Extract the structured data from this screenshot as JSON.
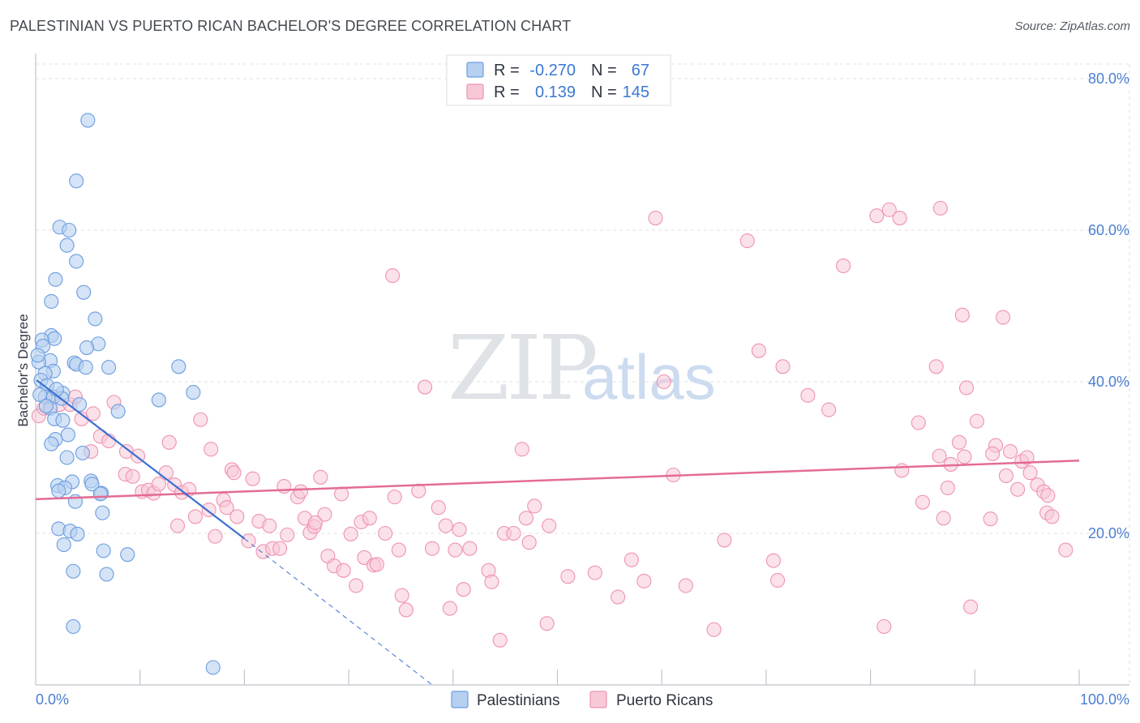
{
  "title": "PALESTINIAN VS PUERTO RICAN BACHELOR'S DEGREE CORRELATION CHART",
  "source": "Source: ZipAtlas.com",
  "watermark": {
    "zip": "ZIP",
    "atlas": "atlas"
  },
  "legend": {
    "rows": [
      {
        "r_label": "R =",
        "r_value": "-0.270",
        "n_label": "N =",
        "n_value": "67",
        "color": "#7faee8"
      },
      {
        "r_label": "R =",
        "r_value": "0.139",
        "n_label": "N =",
        "n_value": "145",
        "color": "#f2a3bd"
      }
    ]
  },
  "bottom_legend": [
    {
      "label": "Palestinians",
      "color": "#7faee8"
    },
    {
      "label": "Puerto Ricans",
      "color": "#f2a3bd"
    }
  ],
  "colors": {
    "blue_fill": "#b7d0f0",
    "blue_stroke": "#6a9de0",
    "blue_line": "#3a70d0",
    "pink_fill": "#f7c9d7",
    "pink_stroke": "#ef93b1",
    "pink_line": "#e36c94",
    "grid": "#dde1e6",
    "axis": "#bfc4ca"
  },
  "chart_data": {
    "type": "scatter",
    "title": "PALESTINIAN VS PUERTO RICAN BACHELOR'S DEGREE CORRELATION CHART",
    "xlabel": "",
    "ylabel": "Bachelor's Degree",
    "xlim": [
      0,
      100
    ],
    "ylim": [
      0,
      80
    ],
    "x_tick_labels": [
      "0.0%",
      "100.0%"
    ],
    "y_ticks": [
      20,
      40,
      60,
      80
    ],
    "y_tick_labels": [
      "20.0%",
      "40.0%",
      "60.0%",
      "80.0%"
    ],
    "grid": true,
    "series": [
      {
        "name": "Palestinians",
        "r": -0.27,
        "n": 67,
        "trend": {
          "x0": 0.1,
          "y0": 40.2,
          "x1": 20.0,
          "y1": 19.3,
          "dash_x1": 38.0,
          "dash_y1": 0.0
        },
        "points": [
          [
            5.0,
            74.5
          ],
          [
            3.9,
            66.5
          ],
          [
            2.3,
            60.4
          ],
          [
            3.2,
            60.0
          ],
          [
            3.0,
            58.0
          ],
          [
            3.9,
            55.9
          ],
          [
            1.9,
            53.5
          ],
          [
            4.6,
            51.8
          ],
          [
            1.5,
            50.6
          ],
          [
            5.7,
            48.3
          ],
          [
            1.5,
            46.1
          ],
          [
            1.8,
            45.7
          ],
          [
            0.6,
            45.5
          ],
          [
            0.7,
            44.7
          ],
          [
            6.0,
            45.0
          ],
          [
            4.9,
            44.5
          ],
          [
            1.4,
            42.8
          ],
          [
            0.3,
            42.6
          ],
          [
            3.7,
            42.5
          ],
          [
            3.9,
            42.3
          ],
          [
            7.0,
            41.9
          ],
          [
            13.7,
            42.0
          ],
          [
            4.8,
            41.9
          ],
          [
            1.7,
            41.4
          ],
          [
            0.9,
            41.1
          ],
          [
            0.5,
            40.2
          ],
          [
            1.1,
            39.5
          ],
          [
            15.1,
            38.6
          ],
          [
            2.6,
            38.5
          ],
          [
            0.9,
            38.0
          ],
          [
            1.7,
            38.0
          ],
          [
            2.5,
            37.8
          ],
          [
            11.8,
            37.6
          ],
          [
            1.4,
            36.5
          ],
          [
            7.9,
            36.1
          ],
          [
            1.8,
            35.1
          ],
          [
            2.6,
            34.9
          ],
          [
            3.1,
            33.0
          ],
          [
            1.9,
            32.4
          ],
          [
            1.5,
            31.8
          ],
          [
            4.5,
            30.6
          ],
          [
            3.0,
            30.0
          ],
          [
            5.3,
            26.9
          ],
          [
            3.5,
            26.8
          ],
          [
            5.4,
            26.5
          ],
          [
            2.1,
            26.3
          ],
          [
            2.8,
            26.0
          ],
          [
            2.2,
            25.6
          ],
          [
            6.3,
            25.3
          ],
          [
            6.2,
            25.2
          ],
          [
            3.8,
            24.2
          ],
          [
            6.4,
            22.7
          ],
          [
            2.2,
            20.6
          ],
          [
            3.3,
            20.3
          ],
          [
            4.0,
            19.9
          ],
          [
            2.7,
            18.5
          ],
          [
            6.5,
            17.7
          ],
          [
            8.8,
            17.2
          ],
          [
            3.6,
            15.0
          ],
          [
            6.8,
            14.6
          ],
          [
            3.6,
            7.7
          ],
          [
            17.0,
            2.3
          ],
          [
            0.4,
            38.3
          ],
          [
            1.0,
            36.8
          ],
          [
            2.0,
            39.0
          ],
          [
            4.2,
            37.0
          ],
          [
            0.2,
            43.5
          ]
        ]
      },
      {
        "name": "Puerto Ricans",
        "r": 0.139,
        "n": 145,
        "trend": {
          "x0": 0.0,
          "y0": 24.5,
          "x1": 100.0,
          "y1": 29.6
        },
        "points": [
          [
            0.3,
            35.5
          ],
          [
            0.8,
            36.5
          ],
          [
            1.5,
            38.0
          ],
          [
            2.3,
            37.0
          ],
          [
            3.3,
            37.0
          ],
          [
            3.8,
            38.0
          ],
          [
            4.4,
            35.1
          ],
          [
            5.5,
            35.8
          ],
          [
            6.2,
            32.8
          ],
          [
            7.0,
            32.2
          ],
          [
            5.3,
            30.8
          ],
          [
            7.5,
            37.3
          ],
          [
            8.7,
            30.8
          ],
          [
            9.8,
            30.2
          ],
          [
            8.6,
            27.8
          ],
          [
            9.3,
            27.5
          ],
          [
            10.2,
            25.5
          ],
          [
            10.8,
            25.7
          ],
          [
            11.3,
            25.3
          ],
          [
            11.8,
            26.5
          ],
          [
            12.5,
            28.0
          ],
          [
            12.8,
            32.0
          ],
          [
            13.3,
            26.4
          ],
          [
            13.6,
            21.0
          ],
          [
            14.0,
            25.4
          ],
          [
            14.7,
            25.8
          ],
          [
            15.3,
            22.2
          ],
          [
            15.8,
            35.0
          ],
          [
            16.6,
            23.1
          ],
          [
            16.8,
            31.1
          ],
          [
            17.2,
            19.6
          ],
          [
            18.0,
            24.4
          ],
          [
            18.3,
            23.4
          ],
          [
            18.8,
            28.4
          ],
          [
            19.0,
            28.0
          ],
          [
            19.3,
            22.2
          ],
          [
            20.4,
            19.0
          ],
          [
            20.8,
            27.2
          ],
          [
            21.4,
            21.6
          ],
          [
            21.8,
            17.6
          ],
          [
            22.4,
            21.0
          ],
          [
            22.7,
            18.0
          ],
          [
            23.4,
            18.0
          ],
          [
            23.8,
            26.2
          ],
          [
            24.1,
            19.8
          ],
          [
            25.1,
            24.8
          ],
          [
            25.4,
            25.5
          ],
          [
            25.8,
            22.0
          ],
          [
            26.3,
            20.1
          ],
          [
            26.7,
            20.9
          ],
          [
            27.3,
            27.4
          ],
          [
            27.7,
            22.5
          ],
          [
            28.0,
            17.0
          ],
          [
            28.6,
            15.7
          ],
          [
            29.3,
            25.2
          ],
          [
            29.5,
            15.1
          ],
          [
            30.2,
            19.9
          ],
          [
            30.7,
            13.1
          ],
          [
            31.2,
            21.5
          ],
          [
            31.5,
            16.8
          ],
          [
            32.0,
            22.0
          ],
          [
            32.4,
            15.8
          ],
          [
            32.7,
            15.9
          ],
          [
            33.5,
            20.0
          ],
          [
            34.2,
            54.0
          ],
          [
            34.4,
            24.8
          ],
          [
            34.8,
            17.8
          ],
          [
            35.1,
            11.8
          ],
          [
            35.5,
            9.9
          ],
          [
            36.7,
            25.6
          ],
          [
            37.3,
            39.3
          ],
          [
            38.0,
            18.0
          ],
          [
            38.6,
            23.4
          ],
          [
            39.3,
            21.0
          ],
          [
            39.7,
            10.1
          ],
          [
            40.2,
            17.8
          ],
          [
            40.6,
            20.5
          ],
          [
            41.0,
            12.6
          ],
          [
            41.6,
            18.0
          ],
          [
            43.4,
            15.1
          ],
          [
            43.7,
            13.6
          ],
          [
            44.5,
            5.9
          ],
          [
            44.9,
            20.0
          ],
          [
            45.8,
            20.0
          ],
          [
            46.6,
            31.1
          ],
          [
            47.0,
            22.0
          ],
          [
            47.3,
            18.8
          ],
          [
            47.8,
            23.6
          ],
          [
            49.0,
            8.1
          ],
          [
            49.2,
            21.0
          ],
          [
            51.0,
            14.3
          ],
          [
            53.6,
            14.8
          ],
          [
            55.8,
            11.6
          ],
          [
            57.1,
            16.5
          ],
          [
            58.3,
            13.7
          ],
          [
            59.4,
            61.6
          ],
          [
            60.2,
            40.0
          ],
          [
            61.1,
            27.7
          ],
          [
            62.3,
            13.1
          ],
          [
            65.0,
            7.3
          ],
          [
            66.0,
            19.1
          ],
          [
            68.2,
            58.6
          ],
          [
            69.3,
            44.1
          ],
          [
            70.7,
            16.4
          ],
          [
            71.1,
            13.8
          ],
          [
            71.6,
            42.0
          ],
          [
            74.0,
            38.2
          ],
          [
            76.0,
            36.3
          ],
          [
            77.4,
            55.3
          ],
          [
            80.6,
            61.9
          ],
          [
            81.3,
            7.7
          ],
          [
            81.8,
            62.7
          ],
          [
            82.8,
            61.6
          ],
          [
            83.0,
            28.3
          ],
          [
            84.6,
            34.6
          ],
          [
            85.0,
            24.1
          ],
          [
            86.6,
            30.2
          ],
          [
            87.0,
            22.0
          ],
          [
            86.7,
            62.9
          ],
          [
            86.3,
            42.0
          ],
          [
            87.4,
            26.0
          ],
          [
            87.7,
            29.1
          ],
          [
            88.8,
            48.8
          ],
          [
            89.0,
            30.1
          ],
          [
            89.2,
            39.2
          ],
          [
            90.2,
            34.8
          ],
          [
            91.5,
            21.9
          ],
          [
            92.0,
            31.6
          ],
          [
            93.4,
            30.8
          ],
          [
            94.1,
            25.8
          ],
          [
            94.5,
            29.5
          ],
          [
            95.3,
            28.0
          ],
          [
            96.0,
            26.4
          ],
          [
            96.6,
            25.5
          ],
          [
            96.9,
            22.7
          ],
          [
            97.4,
            22.2
          ],
          [
            98.7,
            17.8
          ],
          [
            92.7,
            48.5
          ],
          [
            89.6,
            10.3
          ],
          [
            91.7,
            30.5
          ],
          [
            95.0,
            30.0
          ],
          [
            88.5,
            32.0
          ],
          [
            26.8,
            21.4
          ],
          [
            93.0,
            27.6
          ],
          [
            97.0,
            25.0
          ]
        ]
      }
    ]
  }
}
